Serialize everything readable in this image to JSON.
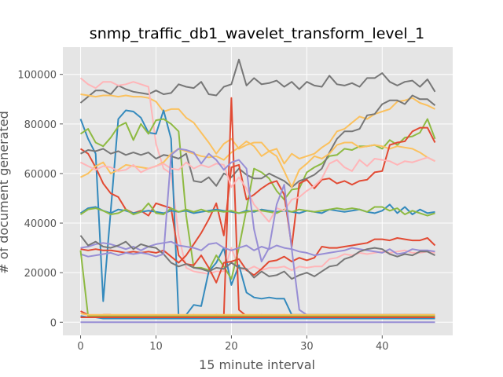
{
  "chart_data": {
    "type": "line",
    "title": "snmp_traffic_db1_wavelet_transform_level_1",
    "xlabel": "15 minute interval",
    "ylabel": "# of document generated",
    "xlim": [
      -2.35,
      49.35
    ],
    "ylim": [
      -5300,
      111000
    ],
    "x_ticks": [
      0,
      10,
      20,
      30,
      40
    ],
    "y_ticks": [
      0,
      20000,
      40000,
      60000,
      80000,
      100000
    ],
    "y_tick_labels": [
      "0",
      "20000",
      "40000",
      "60000",
      "80000",
      "100000"
    ],
    "grid": true,
    "background": "#e5e5e5",
    "grid_color": "#ffffff",
    "colors": [
      "#e24a33",
      "#348abd",
      "#988ed5",
      "#777777",
      "#fbc15e",
      "#8eba42",
      "#ffb5b8"
    ],
    "x": [
      0,
      1,
      2,
      3,
      4,
      5,
      6,
      7,
      8,
      9,
      10,
      11,
      12,
      13,
      14,
      15,
      16,
      17,
      18,
      19,
      20,
      21,
      22,
      23,
      24,
      25,
      26,
      27,
      28,
      29,
      30,
      31,
      32,
      33,
      34,
      35,
      36,
      37,
      38,
      39,
      40,
      41,
      42,
      43,
      44,
      45,
      46,
      47
    ],
    "series": [
      {
        "color_index": 3,
        "values": [
          88500,
          91000,
          93500,
          93500,
          92000,
          95500,
          94000,
          93000,
          92500,
          92000,
          93500,
          92000,
          92500,
          96000,
          95000,
          94500,
          97000,
          92000,
          91500,
          95000,
          96000,
          106000,
          95500,
          98500,
          96000,
          96500,
          97500,
          95000,
          97000,
          94000,
          97000,
          95500,
          95000,
          99500,
          96000,
          95500,
          96500,
          95000,
          98500,
          98500,
          100500,
          97000,
          95500,
          97000,
          97500,
          95000,
          98000,
          93000
        ]
      },
      {
        "color_index": 4,
        "values": [
          92000,
          91500,
          91000,
          91500,
          91500,
          91000,
          91500,
          91000,
          91000,
          90500,
          89000,
          85000,
          86000,
          86000,
          82500,
          80500,
          76500,
          72500,
          68000,
          72000,
          74000,
          70000,
          71500,
          72500,
          72500,
          69000,
          70000,
          64000,
          68000,
          66000,
          67000,
          68000,
          70500,
          72500,
          77000,
          78000,
          80500,
          83000,
          82000,
          84000,
          85000,
          86000,
          89000,
          89500,
          90500,
          88500,
          87500,
          86000
        ]
      },
      {
        "color_index": 6,
        "values": [
          98500,
          96000,
          94500,
          97000,
          97000,
          95500,
          96000,
          97000,
          96000,
          95000,
          72000,
          62000,
          60000,
          35000,
          22000,
          20500,
          20000,
          19500,
          20500,
          20500,
          30000,
          22000,
          21000,
          22500,
          21000,
          22000,
          22000,
          22500,
          21000,
          22500,
          22000,
          22500,
          22500,
          25500,
          26000,
          27500,
          27000,
          28000,
          27500,
          28000,
          28500,
          28000,
          28500,
          29000,
          28000,
          28000,
          28500,
          28000
        ]
      },
      {
        "color_index": 1,
        "values": [
          82000,
          74000,
          68000,
          8500,
          45000,
          82000,
          85500,
          85000,
          82500,
          76500,
          76000,
          85500,
          74000,
          2000,
          3000,
          7000,
          6500,
          20500,
          24000,
          30000,
          15000,
          23000,
          12000,
          10000,
          9500,
          10000,
          9500,
          9500,
          3000,
          3000,
          3000,
          3000,
          3000,
          3000,
          3000,
          3000,
          3000,
          3000,
          3000,
          3000,
          3000,
          3000,
          3000,
          3000,
          3000,
          3000,
          3000,
          3000
        ]
      },
      {
        "color_index": 5,
        "values": [
          76000,
          78000,
          72500,
          71000,
          74500,
          79000,
          80500,
          73500,
          80000,
          76000,
          81500,
          82000,
          80000,
          77000,
          43000,
          22000,
          22000,
          21000,
          27000,
          22500,
          17500,
          30000,
          45500,
          62000,
          60500,
          58000,
          53000,
          49500,
          53500,
          54000,
          60500,
          62500,
          64000,
          67000,
          67500,
          70000,
          69500,
          71000,
          71000,
          71500,
          70000,
          73500,
          71500,
          74500,
          75000,
          76500,
          82000,
          74000
        ]
      },
      {
        "color_index": 0,
        "values": [
          70000,
          68000,
          62500,
          56000,
          52000,
          50500,
          45500,
          44000,
          45000,
          43000,
          48000,
          47000,
          46000,
          27000,
          23500,
          23000,
          27000,
          22000,
          16000,
          24000,
          24500,
          25500,
          21000,
          19000,
          21500,
          24500,
          25000,
          26500,
          24500,
          26000,
          25000,
          26000,
          30500,
          30000,
          30000,
          30500,
          31000,
          31500,
          32000,
          33500,
          33500,
          33000,
          34000,
          33500,
          33000,
          33000,
          34000,
          31000
        ]
      },
      {
        "color_index": 3,
        "values": [
          68000,
          69500,
          69000,
          70000,
          68000,
          69000,
          67500,
          68500,
          67500,
          68500,
          66000,
          67500,
          67000,
          66000,
          68000,
          57000,
          56500,
          58500,
          55000,
          60000,
          58500,
          62000,
          59500,
          58000,
          58000,
          60000,
          58500,
          57000,
          54500,
          57000,
          58000,
          59500,
          62000,
          68500,
          74000,
          77000,
          77000,
          78000,
          83500,
          84000,
          88000,
          89500,
          89500,
          88000,
          91500,
          90000,
          90000,
          87500
        ]
      },
      {
        "color_index": 4,
        "values": [
          58500,
          60000,
          63000,
          64500,
          60000,
          61500,
          63500,
          63000,
          62500,
          62000,
          63000,
          64500,
          68000,
          70000,
          69000,
          68000,
          67000,
          66500,
          67000,
          65500,
          68500,
          70500,
          73000,
          71000,
          67000,
          69000,
          67000,
          61000,
          54500,
          61500,
          64000,
          67000,
          66000,
          68000,
          71500,
          72500,
          72500,
          70500,
          71000,
          71500,
          71000,
          70000,
          71000,
          70500,
          70000,
          68500,
          66500,
          65000
        ]
      },
      {
        "color_index": 0,
        "values": [
          4500,
          3000,
          2500,
          3000,
          3000,
          2500,
          2500,
          2500,
          3000,
          2500,
          2500,
          2500,
          2500,
          2500,
          2500,
          3000,
          2500,
          2500,
          3000,
          2500,
          90500,
          5000,
          2500,
          2500,
          3000,
          2500,
          2500,
          3000,
          2500,
          2500,
          3000,
          2500,
          2500,
          3000,
          2500,
          2500,
          3000,
          2500,
          2500,
          3000,
          2500,
          3000,
          2500,
          3000,
          2500,
          3000,
          2500,
          3000
        ]
      },
      {
        "color_index": 0,
        "values": [
          29500,
          29000,
          29500,
          29000,
          29000,
          28500,
          28000,
          28500,
          28000,
          28500,
          28000,
          29000,
          26500,
          24000,
          27000,
          31500,
          36000,
          41500,
          48000,
          35000,
          62500,
          63500,
          49500,
          51500,
          54000,
          56000,
          57000,
          51500,
          30500,
          56000,
          57500,
          54000,
          57500,
          58000,
          56000,
          57000,
          55500,
          57000,
          57500,
          60500,
          61000,
          71500,
          72500,
          73000,
          77000,
          78500,
          78500,
          72500
        ]
      },
      {
        "color_index": 1,
        "values": [
          44000,
          46000,
          46500,
          45000,
          44000,
          45500,
          45000,
          44000,
          44500,
          45000,
          44500,
          44000,
          45000,
          44500,
          45000,
          44000,
          44500,
          45000,
          45500,
          45000,
          44500,
          44000,
          45000,
          44500,
          45500,
          45000,
          44500,
          45000,
          44500,
          44000,
          45000,
          44500,
          44000,
          45500,
          45000,
          44500,
          45000,
          45500,
          44500,
          44000,
          45000,
          47500,
          44000,
          46500,
          43500,
          45500,
          44000,
          44500
        ]
      },
      {
        "color_index": 5,
        "values": [
          43500,
          45500,
          46000,
          45000,
          43500,
          44000,
          45500,
          43500,
          44500,
          48000,
          44000,
          43500,
          46000,
          44500,
          45500,
          44500,
          45500,
          44500,
          45000,
          44500,
          45000,
          44000,
          44500,
          45000,
          45000,
          44500,
          44000,
          45500,
          44500,
          45500,
          45000,
          44500,
          45000,
          45500,
          46000,
          45500,
          46000,
          45500,
          44500,
          46500,
          46500,
          45000,
          46000,
          43500,
          45000,
          44000,
          43000,
          44000
        ]
      },
      {
        "color_index": 2,
        "values": [
          30000,
          30500,
          31500,
          32000,
          31500,
          30500,
          29500,
          30500,
          29000,
          30500,
          31500,
          32000,
          32500,
          31000,
          30500,
          30000,
          29000,
          31500,
          32000,
          30000,
          29000,
          30000,
          31000,
          29000,
          30500,
          29500,
          31000,
          30000,
          29500,
          28500,
          28000,
          27000,
          27500,
          28000,
          28500,
          29000,
          30000,
          29500,
          29000,
          28500,
          28000,
          29500,
          27500,
          28000,
          29500,
          29000,
          29000,
          28500
        ]
      },
      {
        "color_index": 3,
        "values": [
          35000,
          31000,
          32500,
          30500,
          30000,
          31000,
          32500,
          29500,
          31500,
          30500,
          30000,
          27500,
          24000,
          22500,
          23500,
          22000,
          21500,
          20500,
          22000,
          21500,
          24000,
          22000,
          21500,
          18000,
          20500,
          18500,
          19000,
          20500,
          17500,
          19000,
          20000,
          18500,
          20500,
          22500,
          23000,
          25500,
          26500,
          28500,
          29500,
          30000,
          29500,
          27500,
          26500,
          27500,
          27000,
          28500,
          28500,
          27000
        ]
      },
      {
        "color_index": 6,
        "values": [
          64500,
          63000,
          61500,
          63000,
          62500,
          61000,
          61500,
          63500,
          60500,
          62000,
          63000,
          64000,
          62000,
          61500,
          64500,
          62000,
          63500,
          62500,
          64000,
          63500,
          54500,
          58500,
          54000,
          47500,
          44000,
          40500,
          46000,
          45000,
          49500,
          50500,
          53000,
          55000,
          58000,
          64000,
          65500,
          62500,
          61000,
          65500,
          63000,
          66000,
          65500,
          65000,
          63500,
          65000,
          64500,
          65500,
          66500,
          65000
        ]
      },
      {
        "color_index": 2,
        "values": [
          27500,
          26500,
          27000,
          27500,
          28000,
          27000,
          28000,
          27500,
          28000,
          27500,
          26500,
          27500,
          67500,
          70000,
          69500,
          68500,
          64000,
          68000,
          65500,
          61500,
          64500,
          65500,
          62000,
          37500,
          24500,
          30000,
          47500,
          55500,
          29500,
          5000,
          3000,
          2500,
          3000,
          2500,
          2500,
          3000,
          2500,
          2500,
          3000,
          2500,
          3000,
          2500,
          2500,
          3000,
          2500,
          3000,
          2500,
          2500
        ]
      },
      {
        "color_index": 1,
        "values": [
          2500,
          2000,
          2000,
          1500,
          1500,
          1500,
          1500,
          1500,
          1500,
          1500,
          1500,
          1500,
          1500,
          1500,
          1500,
          1500,
          1500,
          1500,
          1500,
          1500,
          1500,
          1500,
          1500,
          1500,
          1500,
          1500,
          1500,
          1500,
          1500,
          1500,
          1500,
          1500,
          1500,
          1500,
          1500,
          1500,
          1500,
          1500,
          1500,
          1500,
          1500,
          1500,
          1500,
          1500,
          1500,
          1500,
          1500,
          1500
        ]
      },
      {
        "color_index": 5,
        "values": [
          29000,
          2500,
          2500,
          2500,
          2500,
          2500,
          2500,
          2500,
          2500,
          2500,
          2500,
          2500,
          2500,
          2500,
          2500,
          2500,
          2500,
          2500,
          2500,
          2500,
          2500,
          2500,
          2500,
          2500,
          2500,
          2500,
          2500,
          2500,
          2500,
          2500,
          2500,
          2500,
          2500,
          2500,
          2500,
          2500,
          2500,
          2500,
          2500,
          2500,
          2500,
          2500,
          2500,
          2500,
          2500,
          2500,
          2500,
          2500
        ]
      },
      {
        "color_index": 4,
        "values": [
          3500,
          3000,
          3000,
          3000,
          3000,
          3000,
          3000,
          3000,
          3000,
          3000,
          3000,
          3000,
          3000,
          3000,
          3000,
          3000,
          3000,
          3000,
          3000,
          3000,
          3000,
          3000,
          3000,
          3000,
          3000,
          3000,
          3000,
          3000,
          3000,
          3000,
          3000,
          3000,
          3000,
          3000,
          3000,
          3000,
          3000,
          3000,
          3000,
          3000,
          3000,
          3000,
          3000,
          3000,
          3000,
          3000,
          3000,
          3000
        ]
      },
      {
        "color_index": 2,
        "values": [
          0,
          0,
          0,
          0,
          0,
          0,
          0,
          0,
          0,
          0,
          0,
          0,
          0,
          0,
          0,
          0,
          0,
          0,
          0,
          0,
          0,
          0,
          0,
          0,
          0,
          0,
          0,
          0,
          0,
          0,
          0,
          0,
          0,
          0,
          0,
          0,
          0,
          0,
          0,
          0,
          0,
          0,
          0,
          0,
          0,
          0,
          0,
          0
        ]
      },
      {
        "color_index": 0,
        "values": [
          2000,
          2000,
          2000,
          2000,
          2000,
          2000,
          2000,
          2000,
          2000,
          2000,
          2000,
          2000,
          2000,
          2000,
          2000,
          2000,
          2000,
          2000,
          2000,
          2000,
          2000,
          2000,
          2000,
          2000,
          2000,
          2000,
          2000,
          2000,
          2000,
          2000,
          2000,
          2000,
          2000,
          2000,
          2000,
          2000,
          2000,
          2000,
          2000,
          2000,
          2000,
          2000,
          2000,
          2000,
          2000,
          2000,
          2000,
          2000
        ]
      }
    ]
  }
}
